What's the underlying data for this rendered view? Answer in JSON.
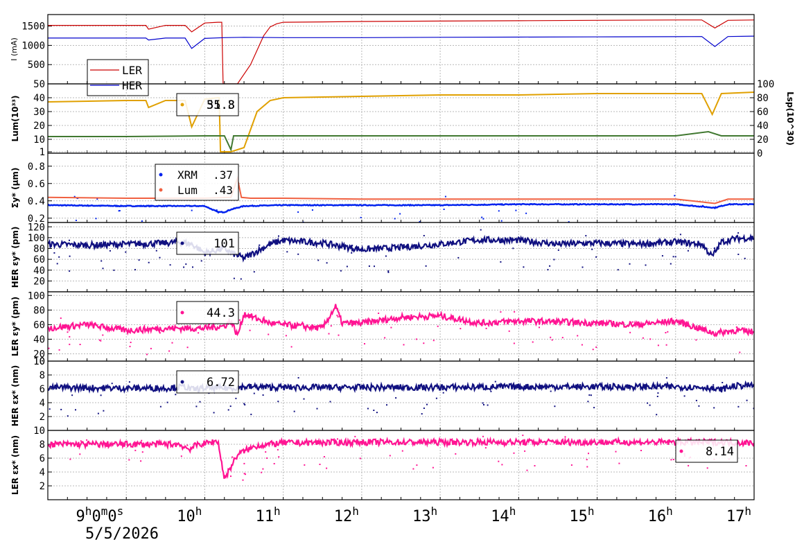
{
  "chart_data": {
    "type": "line",
    "x_range": [
      "2026-05-05T08:00",
      "2026-05-05T17:00"
    ],
    "x_ticks": [
      {
        "t": "2026-05-05T09:00",
        "label": "9h0m0s"
      },
      {
        "t": "2026-05-05T10:00",
        "label": "10h"
      },
      {
        "t": "2026-05-05T11:00",
        "label": "11h"
      },
      {
        "t": "2026-05-05T12:00",
        "label": "12h"
      },
      {
        "t": "2026-05-05T13:00",
        "label": "13h"
      },
      {
        "t": "2026-05-05T14:00",
        "label": "14h"
      },
      {
        "t": "2026-05-05T15:00",
        "label": "15h"
      },
      {
        "t": "2026-05-05T16:00",
        "label": "16h"
      },
      {
        "t": "2026-05-05T17:00",
        "label": "17h"
      }
    ],
    "date_label": "5/5/2026",
    "grid": true,
    "panels": [
      {
        "id": "current",
        "ylabel": "I (mA)",
        "ylim": [
          0,
          1800
        ],
        "yticks": [
          500,
          1000,
          1500
        ],
        "legend": {
          "entries": [
            "LER",
            "HER"
          ]
        },
        "series": [
          {
            "name": "LER",
            "color": "#cc0000",
            "style": "line",
            "x": [
              "08:00",
              "09:00",
              "09:15",
              "09:17",
              "09:30",
              "09:45",
              "09:50",
              "10:00",
              "10:10",
              "10:13",
              "10:14",
              "10:25",
              "10:35",
              "10:45",
              "10:50",
              "10:55",
              "11:00",
              "11:30",
              "12:00",
              "13:00",
              "14:00",
              "15:00",
              "16:00",
              "16:20",
              "16:30",
              "16:40",
              "17:00"
            ],
            "y": [
              1520,
              1520,
              1520,
              1420,
              1520,
              1520,
              1350,
              1580,
              1600,
              1600,
              0,
              0,
              500,
              1250,
              1480,
              1560,
              1600,
              1610,
              1620,
              1630,
              1640,
              1650,
              1660,
              1660,
              1450,
              1650,
              1660
            ]
          },
          {
            "name": "HER",
            "color": "#0000cc",
            "style": "line",
            "x": [
              "08:00",
              "09:00",
              "09:15",
              "09:17",
              "09:30",
              "09:45",
              "09:50",
              "10:00",
              "10:15",
              "10:30",
              "11:00",
              "12:00",
              "13:00",
              "14:00",
              "15:00",
              "16:00",
              "16:20",
              "16:30",
              "16:40",
              "17:00"
            ],
            "y": [
              1190,
              1190,
              1190,
              1140,
              1190,
              1190,
              920,
              1180,
              1200,
              1210,
              1200,
              1200,
              1210,
              1215,
              1220,
              1225,
              1230,
              970,
              1230,
              1240
            ]
          }
        ]
      },
      {
        "id": "luminosity",
        "ylabel": "Lum(10^33)",
        "ylabel_right": "Lsp(10^30)",
        "ylim": [
          0,
          50
        ],
        "yticks": [
          1,
          10,
          20,
          30,
          40,
          50
        ],
        "ytick_labels": [
          "1",
          "10",
          "20",
          "30",
          "40",
          "50"
        ],
        "ylim_right": [
          0,
          100
        ],
        "yticks_right": [
          0,
          20,
          40,
          60,
          80,
          100
        ],
        "readout": {
          "text": "51.8",
          "overlap_text": "35.3"
        },
        "series": [
          {
            "name": "Lum",
            "color": "#e0a000",
            "style": "line",
            "x": [
              "08:00",
              "09:00",
              "09:15",
              "09:17",
              "09:30",
              "09:45",
              "09:50",
              "10:00",
              "10:10",
              "10:11",
              "10:12",
              "10:20",
              "10:30",
              "10:40",
              "10:50",
              "11:00",
              "12:00",
              "13:00",
              "14:00",
              "15:00",
              "16:00",
              "16:20",
              "16:28",
              "16:35",
              "17:00"
            ],
            "y": [
              37,
              38,
              38,
              33,
              38,
              38,
              19,
              39,
              40,
              40,
              1,
              1,
              4,
              30,
              38,
              40,
              41,
              42,
              42,
              43,
              43,
              43,
              28,
              43,
              44
            ]
          },
          {
            "name": "Lsp",
            "color": "#407830",
            "style": "line",
            "x": [
              "08:00",
              "09:00",
              "10:00",
              "10:15",
              "10:20",
              "10:22",
              "10:30",
              "11:00",
              "12:00",
              "13:00",
              "14:00",
              "15:00",
              "16:00",
              "16:25",
              "16:35",
              "17:00"
            ],
            "y": [
              24,
              24,
              25,
              25,
              5,
              25,
              25,
              25,
              25,
              25,
              25,
              25,
              25,
              31,
              25,
              25
            ]
          }
        ]
      },
      {
        "id": "beamsize",
        "ylabel": "Σy* (μm)",
        "ylim": [
          0.15,
          0.95
        ],
        "yticks": [
          0.2,
          0.4,
          0.6,
          0.8
        ],
        "legend": {
          "entries": [
            {
              "name": "XRM",
              "value": ".37"
            },
            {
              "name": "Lum",
              "value": ".43"
            }
          ]
        },
        "series": [
          {
            "name": "XRM",
            "color": "#0022ee",
            "style": "dots",
            "x": [
              "08:00",
              "09:00",
              "10:00",
              "10:10",
              "10:15",
              "10:20",
              "10:30",
              "11:00",
              "12:00",
              "13:00",
              "14:00",
              "15:00",
              "16:00",
              "16:30",
              "16:40",
              "17:00"
            ],
            "y": [
              0.35,
              0.34,
              0.34,
              0.27,
              0.27,
              0.3,
              0.34,
              0.35,
              0.35,
              0.35,
              0.36,
              0.36,
              0.36,
              0.32,
              0.36,
              0.36
            ]
          },
          {
            "name": "Lum",
            "color": "#f06040",
            "style": "line",
            "x": [
              "08:00",
              "09:00",
              "10:00",
              "10:20",
              "10:25",
              "10:28",
              "10:35",
              "11:00",
              "12:00",
              "13:00",
              "14:00",
              "15:00",
              "16:00",
              "16:30",
              "16:40",
              "17:00"
            ],
            "y": [
              0.44,
              0.43,
              0.43,
              0.44,
              0.66,
              0.44,
              0.43,
              0.43,
              0.42,
              0.42,
              0.42,
              0.42,
              0.42,
              0.37,
              0.42,
              0.42
            ]
          }
        ]
      },
      {
        "id": "her_ey",
        "ylabel": "HER εy* (pm)",
        "ylim": [
          0,
          128
        ],
        "yticks": [
          20,
          40,
          60,
          80,
          100,
          120
        ],
        "readout": {
          "text": "101"
        },
        "series": [
          {
            "name": "HER εy*",
            "color": "#101080",
            "style": "noisy",
            "x": [
              "08:00",
              "08:30",
              "09:00",
              "09:30",
              "09:40",
              "09:50",
              "10:00",
              "10:15",
              "10:20",
              "10:30",
              "10:40",
              "10:50",
              "11:00",
              "11:30",
              "12:00",
              "12:30",
              "13:00",
              "13:30",
              "14:00",
              "14:30",
              "15:00",
              "15:30",
              "16:00",
              "16:20",
              "16:28",
              "16:35",
              "16:45",
              "17:00"
            ],
            "y": [
              88,
              86,
              88,
              90,
              92,
              88,
              72,
              80,
              72,
              62,
              75,
              88,
              95,
              90,
              78,
              82,
              88,
              96,
              95,
              88,
              90,
              88,
              92,
              88,
              65,
              92,
              98,
              100
            ]
          }
        ]
      },
      {
        "id": "ler_ey",
        "ylabel": "LER εy* (pm)",
        "ylim": [
          10,
          105
        ],
        "yticks": [
          10,
          20,
          40,
          60,
          80,
          100
        ],
        "readout": {
          "text": "44.3"
        },
        "series": [
          {
            "name": "LER εy*",
            "color": "#ff1493",
            "style": "noisy",
            "x": [
              "08:00",
              "08:30",
              "09:00",
              "09:30",
              "10:00",
              "10:15",
              "10:20",
              "10:25",
              "10:30",
              "10:40",
              "10:50",
              "11:00",
              "11:30",
              "11:40",
              "11:45",
              "12:00",
              "12:30",
              "13:00",
              "13:30",
              "14:00",
              "14:30",
              "15:00",
              "15:30",
              "16:00",
              "16:30",
              "16:45",
              "17:00"
            ],
            "y": [
              55,
              60,
              52,
              55,
              55,
              58,
              65,
              45,
              75,
              68,
              62,
              60,
              55,
              85,
              62,
              62,
              70,
              72,
              62,
              65,
              64,
              62,
              60,
              65,
              48,
              52,
              50
            ]
          }
        ]
      },
      {
        "id": "her_ex",
        "ylabel": "HER εx* (nm)",
        "ylim": [
          0,
          10
        ],
        "yticks": [
          2,
          4,
          6,
          8,
          10
        ],
        "readout": {
          "text": "6.72"
        },
        "series": [
          {
            "name": "HER εx*",
            "color": "#101080",
            "style": "noisy",
            "x": [
              "08:00",
              "09:00",
              "09:30",
              "09:45",
              "09:50",
              "10:00",
              "10:20",
              "10:30",
              "11:00",
              "12:00",
              "13:00",
              "14:00",
              "15:00",
              "16:00",
              "16:25",
              "16:32",
              "16:45",
              "17:00"
            ],
            "y": [
              6.2,
              6.1,
              6.1,
              6.3,
              5.9,
              6.1,
              6.1,
              6.3,
              6.2,
              6.2,
              6.2,
              6.3,
              6.3,
              6.3,
              6.2,
              5.8,
              6.4,
              6.5
            ]
          }
        ]
      },
      {
        "id": "ler_ex",
        "ylabel": "LER εx* (nm)",
        "ylim": [
          0,
          10
        ],
        "yticks": [
          2,
          4,
          6,
          8,
          10
        ],
        "readout": {
          "text": "8.14"
        },
        "series": [
          {
            "name": "LER εx*",
            "color": "#ff1493",
            "style": "noisy",
            "x": [
              "08:00",
              "09:00",
              "09:40",
              "09:48",
              "09:55",
              "10:00",
              "10:10",
              "10:15",
              "10:25",
              "10:30",
              "10:40",
              "10:50",
              "11:00",
              "12:00",
              "13:00",
              "14:00",
              "15:00",
              "16:00",
              "16:30",
              "17:00"
            ],
            "y": [
              8.0,
              8.0,
              8.0,
              7.3,
              8.0,
              8.1,
              8.5,
              3.0,
              6.5,
              7.0,
              7.8,
              8.0,
              8.2,
              8.3,
              8.3,
              8.3,
              8.3,
              8.3,
              8.3,
              8.2
            ]
          }
        ]
      }
    ]
  }
}
